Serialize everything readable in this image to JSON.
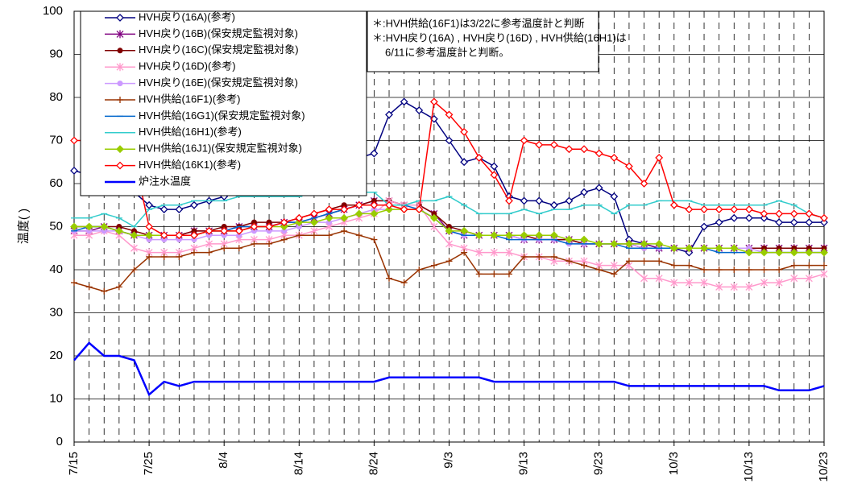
{
  "chart_data": {
    "type": "line",
    "y_label": "温度( )",
    "annotations": [
      "＊:HVH供給(16F1)は3/22に参考温度計と判断",
      "＊:HVH戻り(16A) , HVH戻り(16D) , HVH供給(16H1)は",
      "6/11に参考温度計と判断。"
    ],
    "x": [
      "7/15",
      null,
      null,
      null,
      null,
      "7/25",
      null,
      null,
      null,
      null,
      "8/4",
      null,
      null,
      null,
      null,
      "8/14",
      null,
      null,
      null,
      null,
      "8/24",
      null,
      null,
      null,
      null,
      "9/3",
      null,
      null,
      null,
      null,
      "9/13",
      null,
      null,
      null,
      null,
      "9/23",
      null,
      null,
      null,
      null,
      "10/3",
      null,
      null,
      null,
      null,
      "10/13",
      null,
      null,
      null,
      null,
      "10/23"
    ],
    "ylim": [
      0,
      100
    ],
    "yticks": [
      0,
      10,
      20,
      30,
      40,
      50,
      60,
      70,
      80,
      90,
      100
    ],
    "grid": true,
    "series": [
      {
        "name": "HVH戻り(16A)(参考)",
        "color": "#000080",
        "marker": "diamond-open",
        "values": [
          63,
          62,
          62,
          62,
          58,
          55,
          54,
          54,
          55,
          56,
          57,
          58,
          58,
          59,
          60,
          61,
          62,
          63,
          65,
          66,
          67,
          76,
          79,
          77,
          75,
          70,
          65,
          66,
          64,
          57,
          56,
          56,
          55,
          56,
          58,
          59,
          57,
          47,
          46,
          45,
          45,
          44,
          50,
          51,
          52,
          52,
          52,
          51,
          51,
          51,
          51
        ]
      },
      {
        "name": "HVH戻り(16B)(保安規定監視対象)",
        "color": "#800080",
        "marker": "asterisk",
        "values": [
          49,
          49,
          50,
          49,
          48,
          48,
          48,
          48,
          49,
          49,
          49,
          50,
          50,
          50,
          51,
          51,
          52,
          53,
          54,
          55,
          56,
          56,
          55,
          55,
          53,
          49,
          48,
          48,
          48,
          48,
          47,
          47,
          47,
          47,
          46,
          46,
          46,
          46,
          46,
          45,
          45,
          45,
          45,
          45,
          45,
          45,
          45,
          45,
          45,
          45,
          45
        ]
      },
      {
        "name": "HVH戻り(16C)(保安規定監視対象)",
        "color": "#800000",
        "marker": "circle",
        "values": [
          50,
          50,
          50,
          50,
          49,
          48,
          48,
          48,
          49,
          49,
          50,
          50,
          51,
          51,
          51,
          52,
          53,
          54,
          55,
          55,
          56,
          56,
          55,
          55,
          53,
          50,
          49,
          48,
          48,
          48,
          48,
          47,
          47,
          47,
          46,
          46,
          46,
          46,
          45,
          45,
          45,
          45,
          45,
          45,
          45,
          45,
          45,
          45,
          45,
          45,
          45
        ]
      },
      {
        "name": "HVH戻り(16D)(参考)",
        "color": "#ff99cc",
        "marker": "asterisk",
        "values": [
          48,
          48,
          49,
          48,
          45,
          44,
          44,
          44,
          45,
          46,
          46,
          47,
          47,
          47,
          48,
          48,
          49,
          50,
          51,
          52,
          53,
          56,
          55,
          55,
          50,
          46,
          45,
          44,
          44,
          44,
          43,
          43,
          42,
          42,
          42,
          41,
          41,
          41,
          38,
          38,
          37,
          37,
          37,
          36,
          36,
          36,
          37,
          37,
          38,
          38,
          39
        ]
      },
      {
        "name": "HVH戻り(16E)(保安規定監視対象)",
        "color": "#cc99ff",
        "marker": "circle",
        "values": [
          49,
          49,
          49,
          49,
          48,
          47,
          47,
          47,
          47,
          48,
          48,
          48,
          49,
          49,
          49,
          50,
          51,
          51,
          52,
          53,
          54,
          54,
          54,
          54,
          52,
          49,
          48,
          48,
          48,
          48,
          47,
          47,
          47,
          46,
          46,
          46,
          46,
          46,
          45,
          45,
          45,
          45,
          45,
          45,
          45,
          45,
          44,
          44,
          44,
          44,
          44
        ]
      },
      {
        "name": "HVH供給(16F1)(参考)",
        "color": "#993300",
        "marker": "plus",
        "values": [
          37,
          36,
          35,
          36,
          40,
          43,
          43,
          43,
          44,
          44,
          45,
          45,
          46,
          46,
          47,
          48,
          48,
          48,
          49,
          48,
          47,
          38,
          37,
          40,
          41,
          42,
          44,
          39,
          39,
          39,
          43,
          43,
          43,
          42,
          41,
          40,
          39,
          42,
          42,
          42,
          41,
          41,
          40,
          40,
          40,
          40,
          40,
          40,
          41,
          41,
          41
        ]
      },
      {
        "name": "HVH供給(16G1)(保安規定監視対象)",
        "color": "#0066cc",
        "marker": "dash",
        "values": [
          49,
          50,
          50,
          49,
          48,
          48,
          48,
          48,
          48,
          49,
          49,
          50,
          50,
          50,
          51,
          51,
          52,
          53,
          54,
          55,
          55,
          55,
          55,
          54,
          52,
          49,
          48,
          48,
          48,
          47,
          47,
          47,
          47,
          46,
          46,
          46,
          46,
          45,
          45,
          45,
          45,
          45,
          45,
          44,
          44,
          44,
          44,
          44,
          44,
          44,
          44
        ]
      },
      {
        "name": "HVH供給(16H1)(参考)",
        "color": "#33cccc",
        "marker": "dash",
        "values": [
          52,
          52,
          53,
          52,
          50,
          54,
          55,
          55,
          56,
          56,
          56,
          57,
          57,
          57,
          57,
          57,
          58,
          58,
          58,
          58,
          58,
          55,
          55,
          56,
          56,
          57,
          55,
          53,
          53,
          53,
          54,
          53,
          54,
          54,
          55,
          55,
          53,
          55,
          55,
          56,
          56,
          56,
          55,
          55,
          55,
          55,
          55,
          56,
          55,
          53,
          52
        ]
      },
      {
        "name": "HVH供給(16J1)(保安規定監視対象)",
        "color": "#99cc00",
        "marker": "diamond",
        "values": [
          50,
          50,
          50,
          49,
          48,
          48,
          48,
          48,
          48,
          49,
          49,
          49,
          50,
          50,
          50,
          51,
          51,
          52,
          52,
          53,
          53,
          54,
          54,
          54,
          52,
          49,
          49,
          48,
          48,
          48,
          48,
          48,
          48,
          47,
          47,
          46,
          46,
          46,
          46,
          46,
          45,
          45,
          45,
          45,
          45,
          44,
          44,
          44,
          44,
          44,
          44
        ]
      },
      {
        "name": "HVH供給(16K1)(参考)",
        "color": "#ff0000",
        "marker": "diamond-open",
        "values": [
          70,
          70,
          71,
          71,
          66,
          50,
          48,
          48,
          48,
          49,
          49,
          49,
          50,
          50,
          51,
          52,
          53,
          54,
          54,
          55,
          55,
          55,
          54,
          54,
          79,
          76,
          72,
          66,
          62,
          56,
          70,
          69,
          69,
          68,
          68,
          67,
          66,
          64,
          60,
          66,
          55,
          54,
          54,
          54,
          54,
          54,
          53,
          53,
          53,
          53,
          52
        ]
      },
      {
        "name": "炉注水温度",
        "color": "#0000ff",
        "marker": "none",
        "values": [
          19,
          23,
          20,
          20,
          19,
          11,
          14,
          13,
          14,
          14,
          14,
          14,
          14,
          14,
          14,
          14,
          14,
          14,
          14,
          14,
          14,
          15,
          15,
          15,
          15,
          15,
          15,
          15,
          14,
          14,
          14,
          14,
          14,
          14,
          14,
          14,
          14,
          13,
          13,
          13,
          13,
          13,
          13,
          13,
          13,
          13,
          13,
          12,
          12,
          12,
          13
        ]
      }
    ]
  }
}
